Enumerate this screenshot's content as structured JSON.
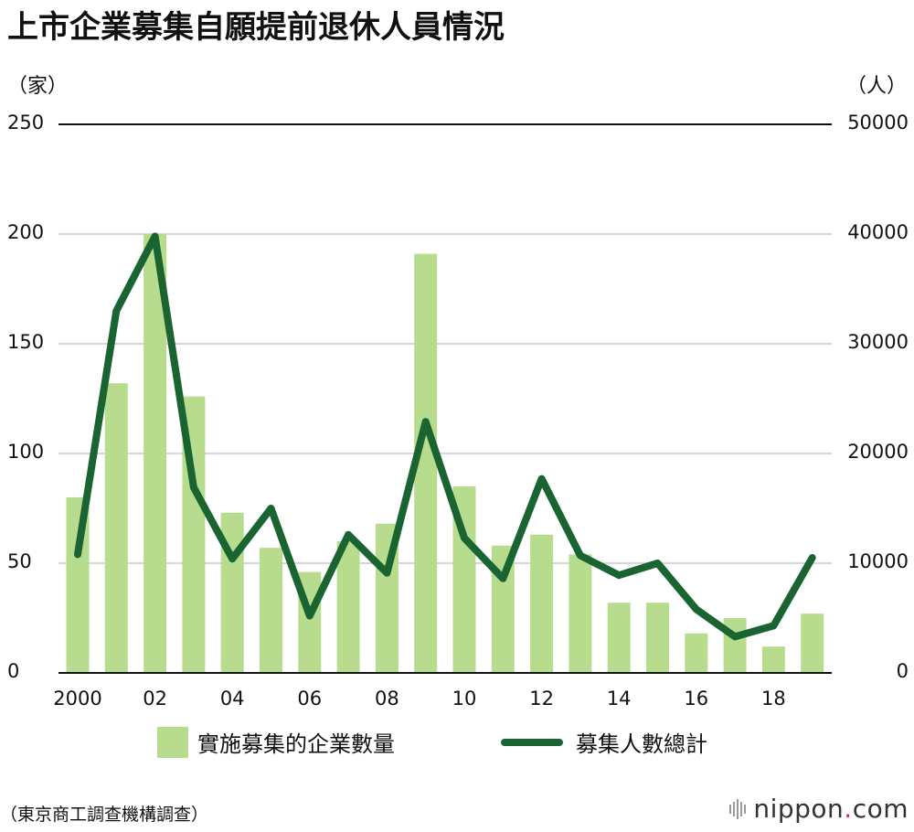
{
  "title": "上市企業募集自願提前退休人員情況",
  "chart_data": {
    "type": "bar+line",
    "title": "上市企業募集自願提前退休人員情況",
    "left_unit": "（家）",
    "right_unit": "（人）",
    "categories": [
      "2000",
      "2001",
      "2002",
      "2003",
      "2004",
      "2005",
      "2006",
      "2007",
      "2008",
      "2009",
      "2010",
      "2011",
      "2012",
      "2013",
      "2014",
      "2015",
      "2016",
      "2017",
      "2018",
      "2019"
    ],
    "x_tick_labels": [
      "2000",
      "",
      "02",
      "",
      "04",
      "",
      "06",
      "",
      "08",
      "",
      "10",
      "",
      "12",
      "",
      "14",
      "",
      "16",
      "",
      "18",
      ""
    ],
    "y_left_ticks": [
      "0",
      "50",
      "100",
      "150",
      "200",
      "250"
    ],
    "y_right_ticks": [
      "0",
      "10000",
      "20000",
      "30000",
      "40000",
      "50000"
    ],
    "ylim_left": [
      0,
      250
    ],
    "ylim_right": [
      0,
      50000
    ],
    "series": [
      {
        "name": "實施募集的企業數量",
        "type": "bar",
        "axis": "left",
        "color": "#b7dc8e",
        "values": [
          80,
          132,
          200,
          126,
          73,
          57,
          46,
          60,
          68,
          191,
          85,
          58,
          63,
          54,
          32,
          32,
          18,
          25,
          12,
          27
        ]
      },
      {
        "name": "募集人數總計",
        "type": "line",
        "axis": "right",
        "color": "#1a6432",
        "values": [
          10800,
          33000,
          39800,
          16900,
          10400,
          15000,
          5200,
          12600,
          9100,
          22900,
          12300,
          8600,
          17700,
          10700,
          8900,
          10000,
          5800,
          3300,
          4300,
          10500
        ]
      }
    ],
    "grid": true
  },
  "legend": {
    "bar_label": "實施募集的企業數量",
    "line_label": "募集人數總計"
  },
  "source": "（東京商工調查機構調查）",
  "brand": {
    "name": "nippon",
    "dot": ".",
    "suffix": "com"
  }
}
